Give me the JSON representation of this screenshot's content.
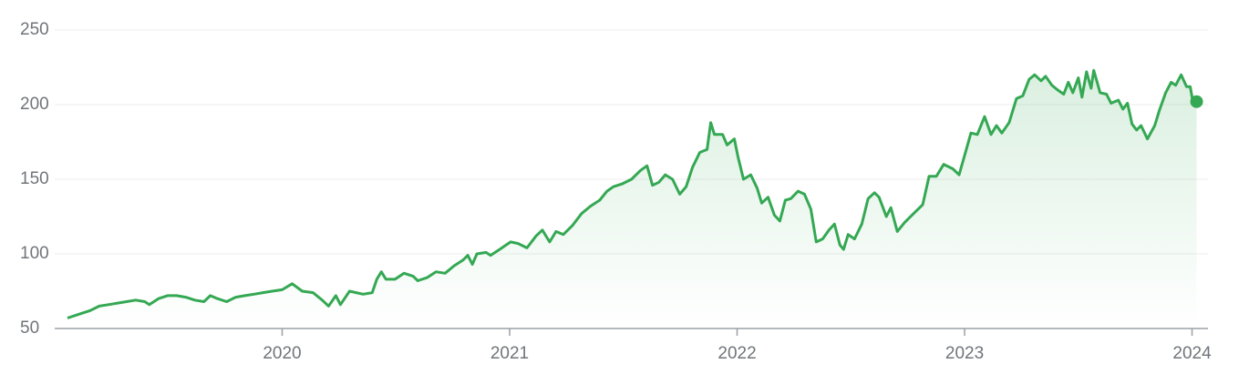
{
  "chart_data": {
    "type": "line",
    "color": "#34a853",
    "area": true,
    "grid": true,
    "end_marker": true,
    "xlim": [
      2019.0,
      2024.07
    ],
    "xticks": [
      2020,
      2021,
      2022,
      2023,
      2024
    ],
    "ylim": [
      50,
      250
    ],
    "yticks": [
      50,
      100,
      150,
      200,
      250
    ],
    "x": [
      2019.056,
      2019.116,
      2019.156,
      2019.196,
      2019.236,
      2019.276,
      2019.316,
      2019.356,
      2019.396,
      2019.416,
      2019.456,
      2019.496,
      2019.536,
      2019.576,
      2019.616,
      2019.656,
      2019.684,
      2019.716,
      2019.756,
      2019.796,
      2019.836,
      2019.876,
      2019.916,
      2019.956,
      2020.0,
      2020.044,
      2020.088,
      2020.136,
      2020.176,
      2020.204,
      2020.236,
      2020.256,
      2020.296,
      2020.356,
      2020.396,
      2020.416,
      2020.436,
      2020.456,
      2020.496,
      2020.536,
      2020.576,
      2020.596,
      2020.636,
      2020.676,
      2020.716,
      2020.756,
      2020.796,
      2020.816,
      2020.836,
      2020.856,
      2020.896,
      2020.916,
      2020.956,
      2021.004,
      2021.036,
      2021.076,
      2021.116,
      2021.144,
      2021.176,
      2021.204,
      2021.236,
      2021.276,
      2021.316,
      2021.356,
      2021.396,
      2021.428,
      2021.456,
      2021.496,
      2021.536,
      2021.576,
      2021.604,
      2021.628,
      2021.656,
      2021.684,
      2021.716,
      2021.748,
      2021.776,
      2021.804,
      2021.836,
      2021.868,
      2021.884,
      2021.9,
      2021.936,
      2021.956,
      2021.988,
      2022.004,
      2022.028,
      2022.06,
      2022.088,
      2022.108,
      2022.136,
      2022.164,
      2022.188,
      2022.212,
      2022.236,
      2022.268,
      2022.296,
      2022.324,
      2022.348,
      2022.376,
      2022.404,
      2022.428,
      2022.452,
      2022.468,
      2022.488,
      2022.516,
      2022.548,
      2022.576,
      2022.604,
      2022.624,
      2022.656,
      2022.676,
      2022.704,
      2022.736,
      2022.776,
      2022.816,
      2022.844,
      2022.876,
      2022.908,
      2022.948,
      2022.976,
      2023.004,
      2023.028,
      2023.056,
      2023.088,
      2023.116,
      2023.14,
      2023.164,
      2023.196,
      2023.228,
      2023.256,
      2023.284,
      2023.308,
      2023.336,
      2023.356,
      2023.384,
      2023.408,
      2023.436,
      2023.456,
      2023.476,
      2023.5,
      2023.516,
      2023.536,
      2023.556,
      2023.568,
      2023.596,
      2023.624,
      2023.644,
      2023.676,
      2023.696,
      2023.716,
      2023.736,
      2023.756,
      2023.776,
      2023.804,
      2023.836,
      2023.856,
      2023.884,
      2023.908,
      2023.928,
      2023.952,
      2023.976,
      2023.992,
      2024.004,
      2024.02
    ],
    "values": [
      57,
      60,
      62,
      65,
      66,
      67,
      68,
      69,
      68,
      66,
      70,
      72,
      72,
      71,
      69,
      68,
      72,
      70,
      68,
      71,
      72,
      73,
      74,
      75,
      76,
      80,
      75,
      74,
      69,
      65,
      72,
      66,
      75,
      73,
      74,
      83,
      88,
      83,
      83,
      87,
      85,
      82,
      84,
      88,
      87,
      92,
      96,
      99,
      93,
      100,
      101,
      99,
      103,
      108,
      107,
      104,
      112,
      116,
      108,
      115,
      113,
      119,
      127,
      132,
      136,
      142,
      145,
      147,
      150,
      156,
      159,
      146,
      148,
      153,
      150,
      140,
      145,
      158,
      168,
      170,
      188,
      180,
      180,
      173,
      177,
      165,
      150,
      153,
      144,
      134,
      138,
      126,
      122,
      136,
      137,
      142,
      140,
      130,
      108,
      110,
      116,
      120,
      106,
      103,
      113,
      110,
      120,
      137,
      141,
      138,
      125,
      131,
      115,
      121,
      127,
      133,
      152,
      152,
      160,
      157,
      153,
      168,
      181,
      180,
      192,
      180,
      186,
      181,
      188,
      204,
      206,
      217,
      220,
      216,
      219,
      213,
      210,
      207,
      215,
      208,
      218,
      205,
      222,
      211,
      223,
      208,
      207,
      201,
      203,
      197,
      201,
      187,
      183,
      186,
      177,
      186,
      196,
      208,
      215,
      213,
      220,
      212,
      212,
      202,
      202
    ]
  }
}
